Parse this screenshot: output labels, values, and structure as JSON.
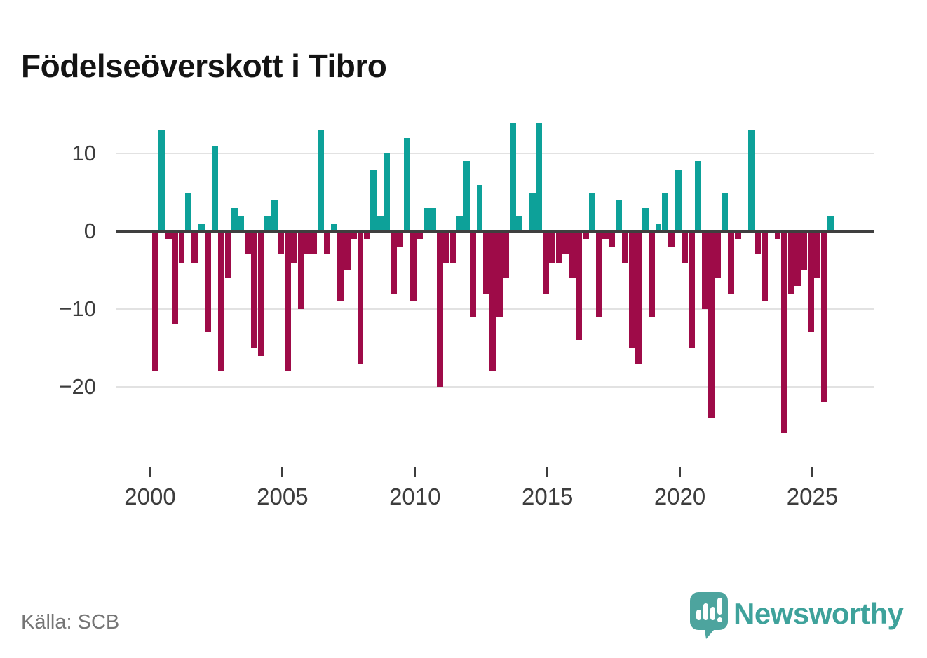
{
  "title": "Födelseöverskott i Tibro",
  "source": "Källa: SCB",
  "branding": {
    "logo_text": "Newsworthy",
    "logo_icon": "speech-bubble-with-bar-chart-and-exclamation",
    "text_color": "#3ea29b",
    "icon_color": "#4da49e"
  },
  "colors": {
    "positive": "#0da199",
    "negative": "#9e0b48",
    "gridline": "#e2e2e2",
    "zero_line": "#3f3f3f"
  },
  "axes": {
    "y_tick_labels": [
      "10",
      "0",
      "−10",
      "−20"
    ],
    "y_tick_values": [
      10,
      0,
      -10,
      -20
    ],
    "x_tick_labels": [
      "2000",
      "2005",
      "2010",
      "2015",
      "2020",
      "2025"
    ]
  },
  "chart_data": {
    "type": "bar",
    "title": "Födelseöverskott i Tibro",
    "x_unit": "quarter",
    "start": "2000 Q1",
    "end": "2025 Q3",
    "xlabel": "",
    "ylabel": "",
    "ylim": [
      -26,
      14
    ],
    "grid": "horizontal",
    "legend": "none",
    "start_year": 2000,
    "values": [
      -18,
      13,
      -1,
      -12,
      -4,
      5,
      -4,
      1,
      -13,
      11,
      -18,
      -6,
      3,
      2,
      -3,
      -15,
      -16,
      2,
      4,
      -3,
      -18,
      -4,
      -10,
      -3,
      -3,
      13,
      -3,
      1,
      -9,
      -5,
      -1,
      -17,
      -1,
      8,
      2,
      10,
      -8,
      -2,
      12,
      -9,
      -1,
      3,
      3,
      -20,
      -4,
      -4,
      2,
      9,
      -11,
      6,
      -8,
      -18,
      -11,
      -6,
      14,
      2,
      0,
      5,
      14,
      -8,
      -4,
      -4,
      -3,
      -6,
      -14,
      -1,
      5,
      -11,
      -1,
      -2,
      4,
      -4,
      -15,
      -17,
      3,
      -11,
      1,
      5,
      -2,
      8,
      -4,
      -15,
      9,
      -10,
      -24,
      -6,
      5,
      -8,
      -1,
      0,
      13,
      -3,
      -9,
      0,
      -1,
      -26,
      -8,
      -7,
      -5,
      -13,
      -6,
      -22,
      2
    ]
  }
}
